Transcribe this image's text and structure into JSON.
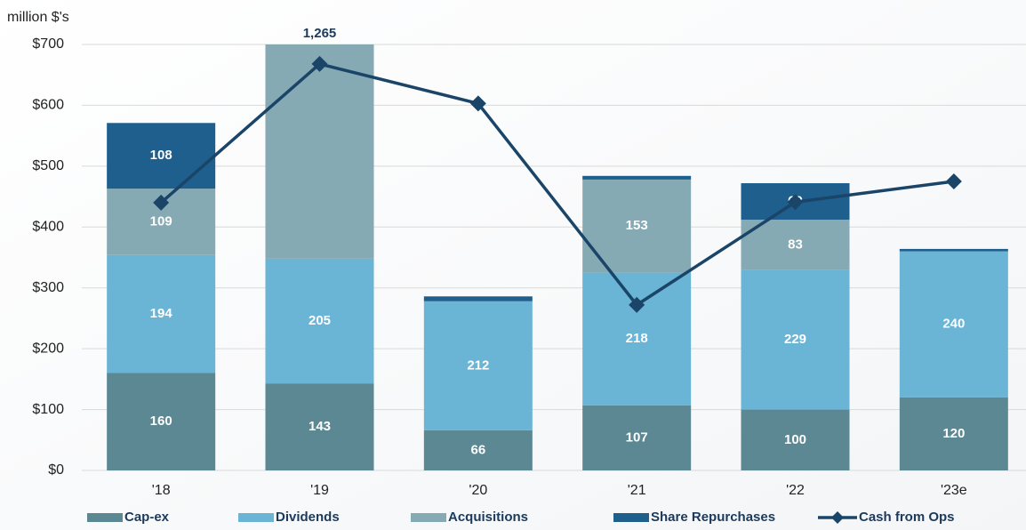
{
  "chart_data": {
    "type": "bar",
    "axis_label": "million $'s",
    "categories": [
      "'18",
      "'19",
      "'20",
      "'21",
      "'22",
      "'23e"
    ],
    "series": [
      {
        "name": "Cap-ex",
        "color": "#5b8892",
        "values": [
          160,
          143,
          66,
          107,
          100,
          120
        ]
      },
      {
        "name": "Dividends",
        "color": "#6ab4d5",
        "values": [
          194,
          205,
          212,
          218,
          229,
          240
        ]
      },
      {
        "name": "Acquisitions",
        "color": "#86aab4",
        "values": [
          109,
          1265,
          0,
          153,
          83,
          0
        ],
        "value_labels": [
          "109",
          "1,265",
          null,
          "153",
          "83",
          null
        ]
      },
      {
        "name": "Share Repurchases",
        "color": "#1f5f8d",
        "values": [
          108,
          0,
          8,
          6,
          60,
          4
        ]
      },
      {
        "name": "Cash from Ops",
        "type": "line",
        "color": "#1b4568",
        "values": [
          440,
          668,
          603,
          272,
          441,
          475
        ]
      }
    ],
    "ylim": [
      0,
      700
    ],
    "yticks": [
      {
        "value": 0,
        "label": "$0"
      },
      {
        "value": 100,
        "label": "$100"
      },
      {
        "value": 200,
        "label": "$200"
      },
      {
        "value": 300,
        "label": "$300"
      },
      {
        "value": 400,
        "label": "$400"
      },
      {
        "value": 500,
        "label": "$500"
      },
      {
        "value": 600,
        "label": "$600"
      },
      {
        "value": 700,
        "label": "$700"
      }
    ],
    "grid": true,
    "legend": "bottom"
  }
}
